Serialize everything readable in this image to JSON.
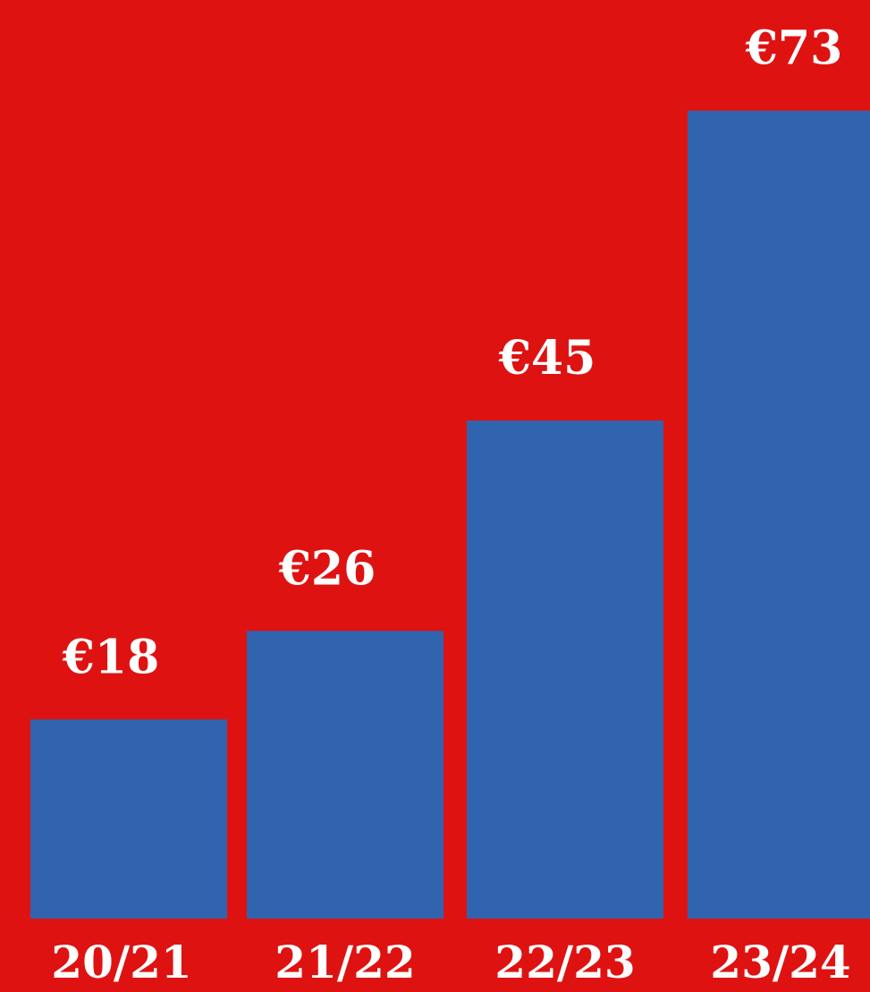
{
  "colors": {
    "background": "#df1212",
    "bar": "#3164ae",
    "text": "#ffffff"
  },
  "chart_data": {
    "type": "bar",
    "categories": [
      "20/21",
      "21/22",
      "22/23",
      "23/24"
    ],
    "values": [
      18,
      26,
      45,
      73
    ],
    "data_labels": [
      "€18",
      "€26",
      "€45",
      "€73"
    ],
    "ylim": [
      0,
      83
    ],
    "grid": false,
    "legend": "none"
  }
}
